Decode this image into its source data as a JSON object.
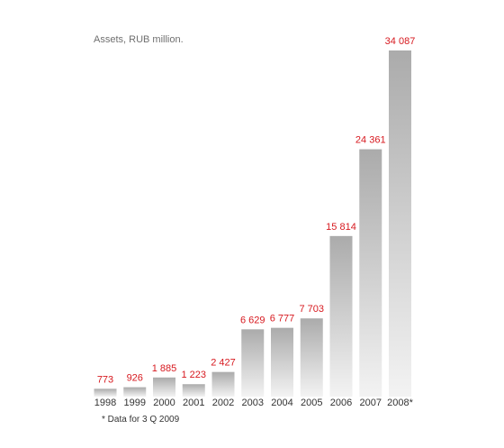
{
  "chart_data": {
    "type": "bar",
    "title": "Assets, RUB million.",
    "categories": [
      "1998",
      "1999",
      "2000",
      "2001",
      "2002",
      "2003",
      "2004",
      "2005",
      "2006",
      "2007",
      "2008*"
    ],
    "values": [
      773,
      926,
      1885,
      1223,
      2427,
      6629,
      6777,
      7703,
      15814,
      24361,
      34087
    ],
    "value_labels": [
      "773",
      "926",
      "1 885",
      "1 223",
      "2 427",
      "6 629",
      "6 777",
      "7 703",
      "15 814",
      "24 361",
      "34 087"
    ],
    "ylim": [
      0,
      34087
    ],
    "grid": false,
    "footnote": "* Data for 3 Q 2009"
  },
  "colors": {
    "value_label": "#d7191f",
    "bar_top": "#ababab",
    "bar_bottom": "#f3f3f3",
    "axis_text": "#333333",
    "title_text": "#6f6f6f"
  }
}
